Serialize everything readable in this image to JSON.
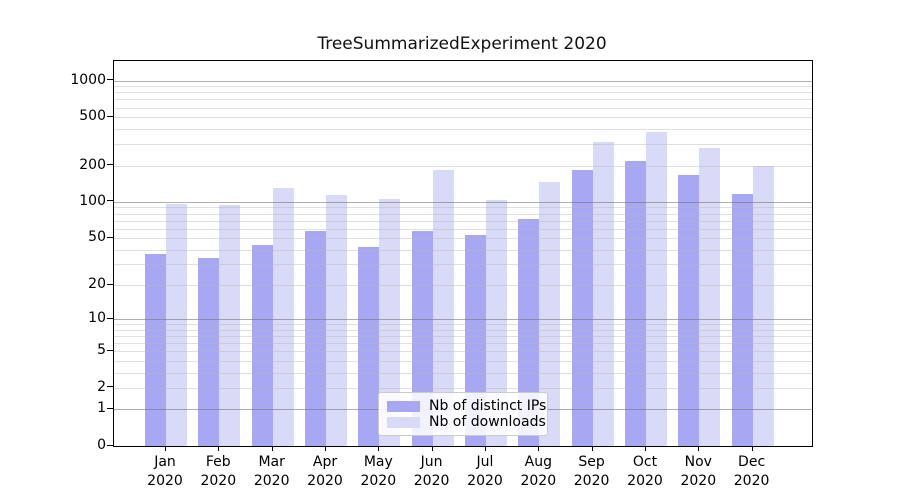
{
  "chart_data": {
    "type": "bar",
    "title": "TreeSummarizedExperiment 2020",
    "categories": [
      "Jan 2020",
      "Feb 2020",
      "Mar 2020",
      "Apr 2020",
      "May 2020",
      "Jun 2020",
      "Jul 2020",
      "Aug 2020",
      "Sep 2020",
      "Oct 2020",
      "Nov 2020",
      "Dec 2020"
    ],
    "series": [
      {
        "name": "Nb of distinct IPs",
        "color": "#a7a7f3",
        "values": [
          37,
          34,
          44,
          57,
          42,
          57,
          53,
          72,
          182,
          218,
          167,
          117
        ]
      },
      {
        "name": "Nb of downloads",
        "color": "#d9d9f8",
        "values": [
          97,
          94,
          131,
          114,
          105,
          184,
          104,
          145,
          314,
          375,
          277,
          198
        ]
      }
    ],
    "y_scale": "log1p",
    "y_ticks": [
      0,
      1,
      2,
      5,
      10,
      20,
      50,
      100,
      200,
      500,
      1000
    ],
    "ylim": [
      0,
      1400
    ],
    "xlabel": "",
    "ylabel": "",
    "grid": "horizontal",
    "legend_position": "inside-bottom-center",
    "colors": {
      "major_gridline": "#b0b0b0",
      "minor_gridline": "#e0e0e0",
      "axis_frame": "#000000",
      "background": "#ffffff"
    }
  }
}
